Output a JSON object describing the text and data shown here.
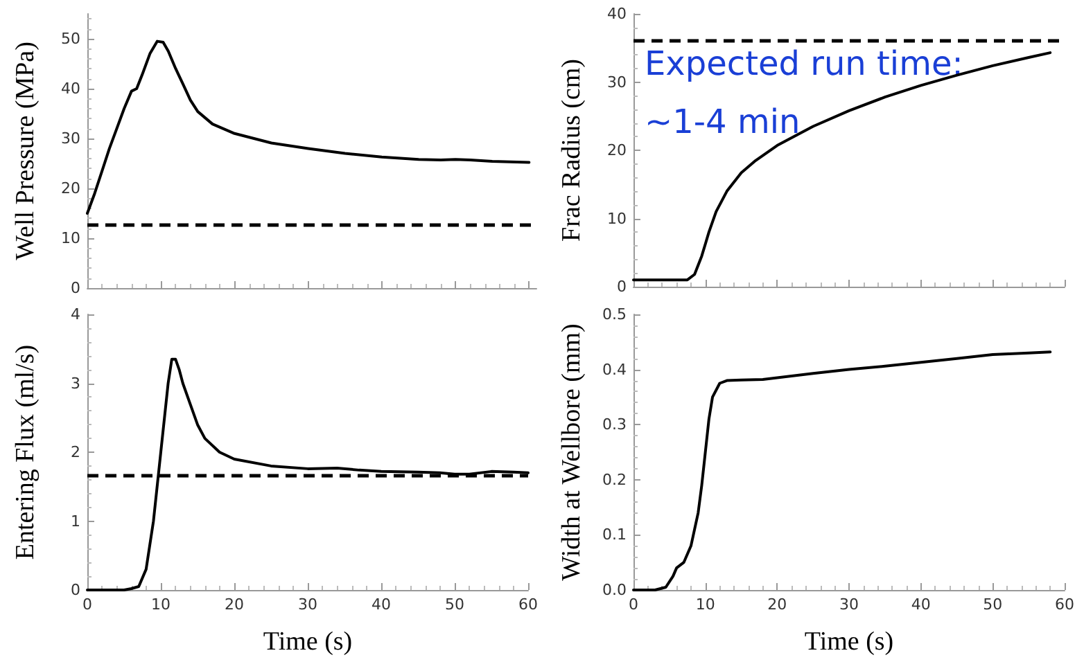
{
  "chart_data": [
    {
      "type": "line",
      "ylabel": "Well Pressure (MPa)",
      "xlim": [
        0,
        61
      ],
      "xticks": [
        0,
        10,
        20,
        30,
        40,
        50,
        60
      ],
      "ylim": [
        0,
        55
      ],
      "yticks": [
        0,
        10,
        20,
        30,
        40,
        50
      ],
      "tick_labels": "y",
      "grid": false,
      "marker": "none",
      "line_style": "solid",
      "series": [
        {
          "color": "#000000",
          "x": [
            0,
            1,
            2,
            3,
            4,
            5,
            6,
            6.7,
            7.5,
            8.5,
            9.5,
            10.3,
            11,
            12,
            13,
            14,
            15,
            17,
            20,
            25,
            30,
            35,
            40,
            45,
            48,
            50,
            52,
            55,
            60
          ],
          "values": [
            15,
            19,
            23.5,
            28,
            32,
            36,
            39.5,
            40,
            43,
            47,
            49.5,
            49.3,
            47.5,
            44,
            40.9,
            37.7,
            35.4,
            32.9,
            31,
            29.1,
            28,
            27,
            26.3,
            25.8,
            25.7,
            25.8,
            25.7,
            25.4,
            25.2
          ]
        }
      ],
      "ref_lines": [
        {
          "axis": "y",
          "value": 12.7,
          "color": "#000000",
          "line_style": "dashed"
        }
      ]
    },
    {
      "type": "line",
      "ylabel": "Frac Radius (cm)",
      "xlim": [
        0,
        60
      ],
      "xticks": [
        0,
        10,
        20,
        30,
        40,
        50,
        60
      ],
      "ylim": [
        0,
        40
      ],
      "yticks": [
        0,
        10,
        20,
        30,
        40
      ],
      "tick_labels": "y",
      "grid": false,
      "marker": "none",
      "line_style": "solid",
      "series": [
        {
          "color": "#000000",
          "x": [
            0,
            7.5,
            8.5,
            9.5,
            10.5,
            11.5,
            13,
            15,
            17,
            20,
            25,
            30,
            35,
            40,
            45,
            50,
            55,
            58
          ],
          "values": [
            1,
            1,
            1.8,
            4.5,
            8,
            11,
            14,
            16.7,
            18.5,
            20.7,
            23.5,
            25.8,
            27.8,
            29.5,
            31,
            32.4,
            33.6,
            34.3
          ]
        }
      ],
      "ref_lines": [
        {
          "axis": "y",
          "value": 36,
          "color": "#000000",
          "line_style": "dashed"
        }
      ],
      "annotations": [
        "Expected run time:",
        "~1-4 min"
      ]
    },
    {
      "type": "line",
      "xlabel": "Time (s)",
      "ylabel": "Entering Flux (ml/s)",
      "xlim": [
        0,
        60
      ],
      "xticks": [
        0,
        10,
        20,
        30,
        40,
        50,
        60
      ],
      "ylim": [
        0,
        4
      ],
      "yticks": [
        0,
        1,
        2,
        3,
        4
      ],
      "grid": false,
      "marker": "none",
      "line_style": "solid",
      "series": [
        {
          "color": "#000000",
          "x": [
            0,
            5,
            6,
            7,
            8,
            9,
            10,
            11,
            11.5,
            12,
            12.5,
            13,
            14,
            15,
            16,
            18,
            20,
            25,
            30,
            34,
            37,
            40,
            45,
            48,
            50,
            52,
            55,
            58,
            60
          ],
          "values": [
            0,
            0,
            0.02,
            0.05,
            0.3,
            1,
            2,
            3,
            3.35,
            3.35,
            3.2,
            3,
            2.7,
            2.4,
            2.2,
            2,
            1.9,
            1.8,
            1.76,
            1.77,
            1.74,
            1.72,
            1.71,
            1.7,
            1.68,
            1.68,
            1.72,
            1.71,
            1.7
          ]
        }
      ],
      "ref_lines": [
        {
          "axis": "y",
          "value": 1.67,
          "color": "#000000",
          "line_style": "dashed"
        }
      ]
    },
    {
      "type": "line",
      "xlabel": "Time (s)",
      "ylabel": "Width at Wellbore (mm)",
      "xlim": [
        0,
        60
      ],
      "xticks": [
        0,
        10,
        20,
        30,
        40,
        50,
        60
      ],
      "ylim": [
        0,
        0.5
      ],
      "yticks": [
        {
          "value": 0,
          "label": "0.0"
        },
        0.1,
        0.2,
        0.3,
        0.4,
        0.5
      ],
      "grid": false,
      "marker": "none",
      "line_style": "solid",
      "series": [
        {
          "color": "#000000",
          "x": [
            0,
            3,
            4.5,
            5.5,
            6,
            7,
            8,
            9,
            9.5,
            10,
            10.5,
            11,
            12,
            13,
            15,
            18,
            20,
            25,
            30,
            35,
            40,
            45,
            50,
            55,
            58
          ],
          "values": [
            0,
            0,
            0.005,
            0.025,
            0.04,
            0.05,
            0.08,
            0.14,
            0.19,
            0.25,
            0.31,
            0.35,
            0.375,
            0.38,
            0.381,
            0.382,
            0.385,
            0.393,
            0.4,
            0.406,
            0.413,
            0.42,
            0.427,
            0.43,
            0.432
          ]
        }
      ]
    }
  ]
}
